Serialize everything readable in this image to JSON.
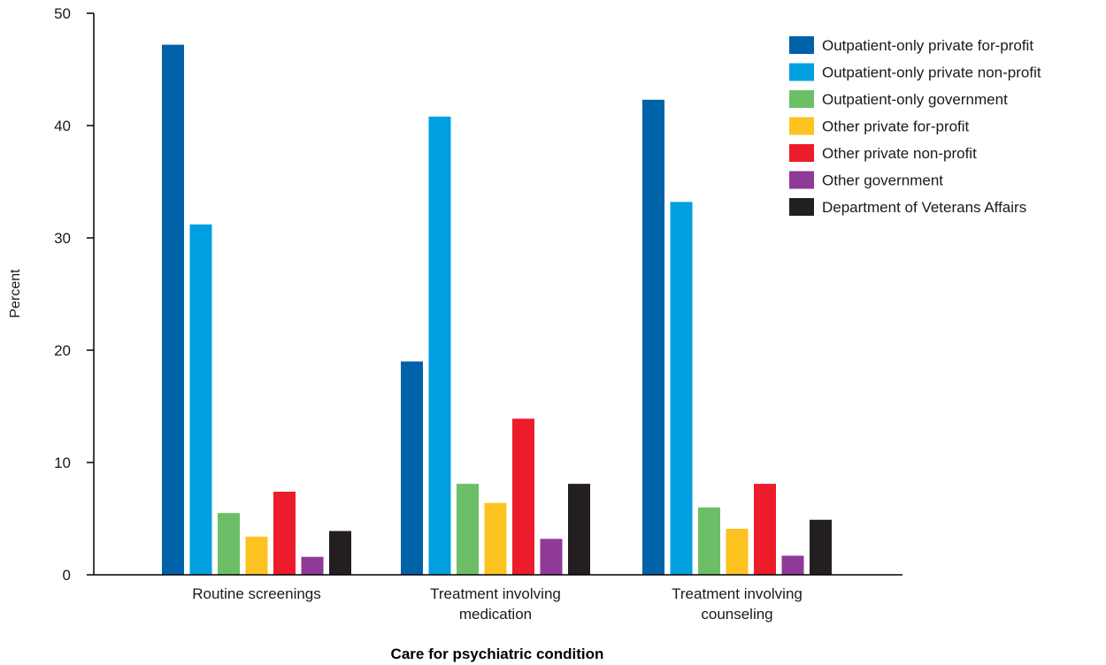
{
  "chart_data": {
    "type": "bar",
    "xlabel": "Care for psychiatric condition",
    "ylabel": "Percent",
    "ylim": [
      0,
      50
    ],
    "yticks": [
      0,
      10,
      20,
      30,
      40,
      50
    ],
    "categories": [
      [
        "Routine screenings"
      ],
      [
        "Treatment involving",
        "medication"
      ],
      [
        "Treatment involving",
        "counseling"
      ]
    ],
    "legend_position": "top-right",
    "grid": false,
    "series": [
      {
        "name": "Outpatient-only private for-profit",
        "color": "#0062a8",
        "values": [
          47.2,
          19.0,
          42.3
        ]
      },
      {
        "name": "Outpatient-only private non-profit",
        "color": "#00a0e0",
        "values": [
          31.2,
          40.8,
          33.2
        ]
      },
      {
        "name": "Outpatient-only government",
        "color": "#6cbf66",
        "values": [
          5.5,
          8.1,
          6.0
        ]
      },
      {
        "name": "Other private for-profit",
        "color": "#fcc320",
        "values": [
          3.4,
          6.4,
          4.1
        ]
      },
      {
        "name": "Other private non-profit",
        "color": "#ec1c2a",
        "values": [
          7.4,
          13.9,
          8.1
        ]
      },
      {
        "name": "Other government",
        "color": "#8e3a96",
        "values": [
          1.6,
          3.2,
          1.7
        ]
      },
      {
        "name": "Department of Veterans Affairs",
        "color": "#231f20",
        "values": [
          3.9,
          8.1,
          4.9
        ]
      }
    ]
  }
}
